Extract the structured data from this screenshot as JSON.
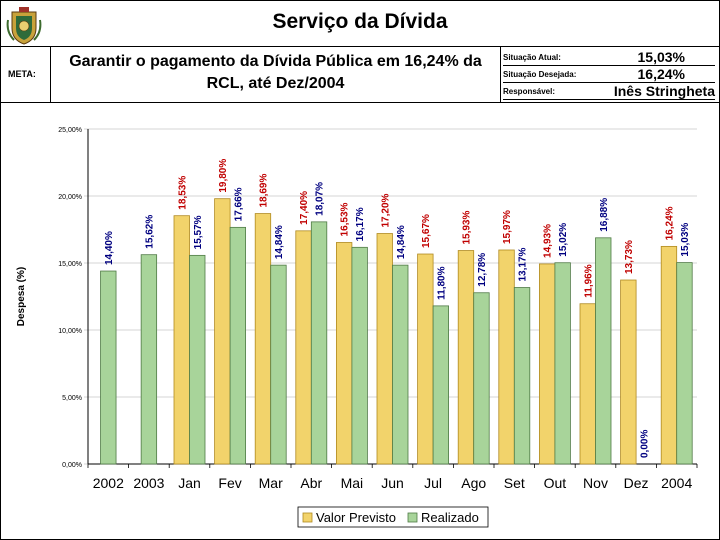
{
  "header": {
    "title": "Serviço da Dívida",
    "meta_label": "META:",
    "goal_line1": "Garantir o pagamento da Dívida Pública em 16,24% da",
    "goal_line2": "RCL, até Dez/2004",
    "situacao_atual_label": "Situação Atual:",
    "situacao_atual_value": "15,03%",
    "situacao_desejada_label": "Situação Desejada:",
    "situacao_desejada_value": "16,24%",
    "responsavel_label": "Responsável:",
    "responsavel_value": "Inês Stringheta"
  },
  "colors": {
    "previsto": "#f2d36b",
    "previsto_edge": "#b08a20",
    "realizado": "#a8d49a",
    "realizado_edge": "#4f7a45",
    "label_previsto": "#c00000",
    "label_realizado": "#000080"
  },
  "chart_data": {
    "type": "bar",
    "title": "",
    "xlabel": "",
    "ylabel": "Despesa (%)",
    "ylim": [
      0,
      25
    ],
    "yticks": [
      "0,00%",
      "5,00%",
      "10,00%",
      "15,00%",
      "20,00%",
      "25,00%"
    ],
    "categories": [
      "2002",
      "2003",
      "Jan",
      "Fev",
      "Mar",
      "Abr",
      "Mai",
      "Jun",
      "Jul",
      "Ago",
      "Set",
      "Out",
      "Nov",
      "Dez",
      "2004"
    ],
    "series": [
      {
        "name": "Valor Previsto",
        "values": [
          null,
          null,
          18.53,
          19.8,
          18.69,
          17.4,
          16.53,
          17.2,
          15.67,
          15.93,
          15.97,
          14.93,
          11.96,
          13.73,
          16.24
        ],
        "labels": [
          "",
          "",
          "18,53%",
          "19,80%",
          "18,69%",
          "17,40%",
          "16,53%",
          "17,20%",
          "15,67%",
          "15,93%",
          "15,97%",
          "14,93%",
          "11,96%",
          "13,73%",
          "16,24%"
        ]
      },
      {
        "name": "Realizado",
        "values": [
          14.4,
          15.62,
          15.57,
          17.66,
          14.84,
          18.07,
          16.17,
          14.84,
          11.8,
          12.78,
          13.17,
          15.02,
          16.88,
          0.0,
          15.03
        ],
        "labels": [
          "14,40%",
          "15,62%",
          "15,57%",
          "17,66%",
          "14,84%",
          "18,07%",
          "16,17%",
          "14,84%",
          "11,80%",
          "12,78%",
          "13,17%",
          "15,02%",
          "16,88%",
          "0,00%",
          "15,03%"
        ]
      }
    ],
    "legend": [
      "Valor Previsto",
      "Realizado"
    ],
    "legend_position": "bottom"
  }
}
